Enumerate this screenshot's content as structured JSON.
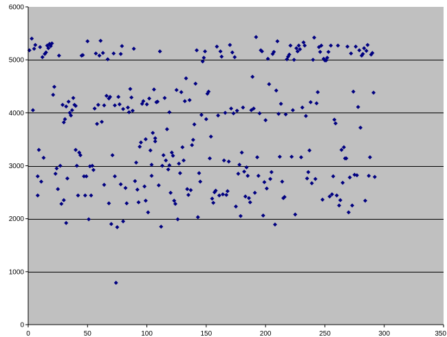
{
  "chart_data": {
    "type": "scatter",
    "title": "",
    "xlabel": "",
    "ylabel": "",
    "xlim": [
      0,
      350
    ],
    "ylim": [
      0,
      6000
    ],
    "xticks": [
      0,
      50,
      100,
      150,
      200,
      250,
      300,
      350
    ],
    "yticks": [
      0,
      1000,
      2000,
      3000,
      4000,
      5000,
      6000
    ],
    "grid": "horizontal",
    "legend": "none",
    "colors": {
      "plot_background": "#c0c0c0",
      "marker": "#000080",
      "gridline": "#000000"
    },
    "series": [
      {
        "marker": "diamond",
        "points": [
          [
            1,
            5180
          ],
          [
            3,
            5400
          ],
          [
            4,
            4050
          ],
          [
            5,
            5210
          ],
          [
            6,
            5280
          ],
          [
            8,
            2440
          ],
          [
            8,
            2800
          ],
          [
            9,
            3300
          ],
          [
            10,
            5240
          ],
          [
            11,
            2700
          ],
          [
            12,
            5050
          ],
          [
            13,
            3150
          ],
          [
            14,
            5110
          ],
          [
            15,
            5140
          ],
          [
            16,
            5270
          ],
          [
            17,
            5220
          ],
          [
            18,
            5300
          ],
          [
            19,
            5260
          ],
          [
            20,
            5310
          ],
          [
            21,
            4340
          ],
          [
            22,
            4490
          ],
          [
            23,
            2850
          ],
          [
            24,
            2950
          ],
          [
            25,
            2560
          ],
          [
            26,
            5080
          ],
          [
            27,
            3000
          ],
          [
            28,
            2280
          ],
          [
            29,
            4150
          ],
          [
            30,
            2350
          ],
          [
            30,
            3820
          ],
          [
            31,
            3880
          ],
          [
            32,
            4120
          ],
          [
            32,
            1920
          ],
          [
            33,
            2760
          ],
          [
            34,
            4210
          ],
          [
            35,
            4000
          ],
          [
            36,
            3950
          ],
          [
            37,
            4050
          ],
          [
            38,
            4280
          ],
          [
            39,
            4150
          ],
          [
            40,
            3300
          ],
          [
            40,
            4130
          ],
          [
            41,
            3000
          ],
          [
            42,
            2440
          ],
          [
            43,
            3250
          ],
          [
            44,
            3200
          ],
          [
            45,
            5080
          ],
          [
            46,
            5090
          ],
          [
            47,
            2800
          ],
          [
            48,
            2440
          ],
          [
            49,
            2800
          ],
          [
            50,
            5350
          ],
          [
            51,
            1990
          ],
          [
            52,
            2990
          ],
          [
            53,
            2440
          ],
          [
            54,
            3000
          ],
          [
            55,
            2920
          ],
          [
            56,
            4080
          ],
          [
            57,
            5120
          ],
          [
            58,
            3790
          ],
          [
            59,
            4150
          ],
          [
            60,
            5080
          ],
          [
            61,
            5360
          ],
          [
            62,
            3830
          ],
          [
            63,
            5130
          ],
          [
            64,
            4140
          ],
          [
            64,
            2640
          ],
          [
            66,
            4320
          ],
          [
            67,
            5010
          ],
          [
            68,
            4270
          ],
          [
            68,
            2290
          ],
          [
            69,
            4300
          ],
          [
            70,
            1900
          ],
          [
            71,
            3200
          ],
          [
            72,
            5120
          ],
          [
            73,
            4140
          ],
          [
            73,
            2800
          ],
          [
            74,
            790
          ],
          [
            75,
            1840
          ],
          [
            76,
            4300
          ],
          [
            77,
            4160
          ],
          [
            78,
            2650
          ],
          [
            78,
            5110
          ],
          [
            79,
            5260
          ],
          [
            80,
            4070
          ],
          [
            80,
            1950
          ],
          [
            82,
            2580
          ],
          [
            83,
            2290
          ],
          [
            84,
            4100
          ],
          [
            85,
            4010
          ],
          [
            86,
            4450
          ],
          [
            87,
            4290
          ],
          [
            88,
            4040
          ],
          [
            89,
            5210
          ],
          [
            90,
            2710
          ],
          [
            91,
            3060
          ],
          [
            92,
            2550
          ],
          [
            93,
            2310
          ],
          [
            94,
            3360
          ],
          [
            95,
            3440
          ],
          [
            96,
            4170
          ],
          [
            97,
            4220
          ],
          [
            98,
            2610
          ],
          [
            99,
            3500
          ],
          [
            99,
            2340
          ],
          [
            100,
            4160
          ],
          [
            101,
            2120
          ],
          [
            102,
            4270
          ],
          [
            103,
            3290
          ],
          [
            104,
            2810
          ],
          [
            104,
            3020
          ],
          [
            105,
            3620
          ],
          [
            106,
            4440
          ],
          [
            107,
            3520
          ],
          [
            107,
            3460
          ],
          [
            108,
            4200
          ],
          [
            109,
            4210
          ],
          [
            110,
            2630
          ],
          [
            111,
            5160
          ],
          [
            112,
            1850
          ],
          [
            113,
            3000
          ],
          [
            114,
            3200
          ],
          [
            115,
            4280
          ],
          [
            116,
            3100
          ],
          [
            117,
            3690
          ],
          [
            118,
            2930
          ],
          [
            119,
            3010
          ],
          [
            119,
            4010
          ],
          [
            120,
            2490
          ],
          [
            121,
            3250
          ],
          [
            122,
            3190
          ],
          [
            123,
            2340
          ],
          [
            124,
            2280
          ],
          [
            125,
            4430
          ],
          [
            126,
            1990
          ],
          [
            127,
            3040
          ],
          [
            128,
            2860
          ],
          [
            129,
            4390
          ],
          [
            130,
            3350
          ],
          [
            131,
            3100
          ],
          [
            132,
            4220
          ],
          [
            133,
            4650
          ],
          [
            134,
            2560
          ],
          [
            135,
            2450
          ],
          [
            136,
            4240
          ],
          [
            137,
            2540
          ],
          [
            138,
            3390
          ],
          [
            139,
            3490
          ],
          [
            140,
            3780
          ],
          [
            141,
            4550
          ],
          [
            142,
            5180
          ],
          [
            143,
            2030
          ],
          [
            144,
            2860
          ],
          [
            145,
            2700
          ],
          [
            146,
            3960
          ],
          [
            147,
            4970
          ],
          [
            148,
            5040
          ],
          [
            149,
            5160
          ],
          [
            150,
            3880
          ],
          [
            151,
            4360
          ],
          [
            152,
            4400
          ],
          [
            153,
            3140
          ],
          [
            154,
            3550
          ],
          [
            155,
            2380
          ],
          [
            156,
            2300
          ],
          [
            157,
            2500
          ],
          [
            158,
            2530
          ],
          [
            159,
            5250
          ],
          [
            160,
            3950
          ],
          [
            161,
            2440
          ],
          [
            162,
            5160
          ],
          [
            163,
            5060
          ],
          [
            164,
            2460
          ],
          [
            165,
            3100
          ],
          [
            166,
            4000
          ],
          [
            167,
            2450
          ],
          [
            168,
            2520
          ],
          [
            169,
            3080
          ],
          [
            170,
            5280
          ],
          [
            171,
            4080
          ],
          [
            172,
            5140
          ],
          [
            173,
            3990
          ],
          [
            174,
            5050
          ],
          [
            175,
            2230
          ],
          [
            176,
            4040
          ],
          [
            177,
            2850
          ],
          [
            178,
            3020
          ],
          [
            179,
            2050
          ],
          [
            180,
            3250
          ],
          [
            181,
            4100
          ],
          [
            182,
            2890
          ],
          [
            183,
            2420
          ],
          [
            184,
            2970
          ],
          [
            185,
            2810
          ],
          [
            186,
            2390
          ],
          [
            187,
            2310
          ],
          [
            188,
            4050
          ],
          [
            189,
            4680
          ],
          [
            190,
            4080
          ],
          [
            191,
            2490
          ],
          [
            192,
            5430
          ],
          [
            193,
            3160
          ],
          [
            194,
            2810
          ],
          [
            195,
            3990
          ],
          [
            196,
            5180
          ],
          [
            197,
            5160
          ],
          [
            198,
            2060
          ],
          [
            199,
            2690
          ],
          [
            200,
            3860
          ],
          [
            201,
            2570
          ],
          [
            202,
            5020
          ],
          [
            203,
            4540
          ],
          [
            204,
            2750
          ],
          [
            205,
            2880
          ],
          [
            206,
            5110
          ],
          [
            207,
            5150
          ],
          [
            208,
            1890
          ],
          [
            209,
            4420
          ],
          [
            210,
            5350
          ],
          [
            211,
            3980
          ],
          [
            212,
            3170
          ],
          [
            213,
            4170
          ],
          [
            214,
            2700
          ],
          [
            215,
            2390
          ],
          [
            216,
            2410
          ],
          [
            217,
            3970
          ],
          [
            218,
            5010
          ],
          [
            219,
            5060
          ],
          [
            220,
            5100
          ],
          [
            221,
            5270
          ],
          [
            222,
            3170
          ],
          [
            223,
            4050
          ],
          [
            224,
            5000
          ],
          [
            225,
            2080
          ],
          [
            226,
            5220
          ],
          [
            227,
            5160
          ],
          [
            228,
            5270
          ],
          [
            229,
            5200
          ],
          [
            230,
            3160
          ],
          [
            231,
            4100
          ],
          [
            232,
            5330
          ],
          [
            233,
            5270
          ],
          [
            234,
            3940
          ],
          [
            235,
            2760
          ],
          [
            236,
            2880
          ],
          [
            237,
            3290
          ],
          [
            238,
            4200
          ],
          [
            239,
            2670
          ],
          [
            240,
            5000
          ],
          [
            241,
            5420
          ],
          [
            242,
            2750
          ],
          [
            243,
            4180
          ],
          [
            244,
            4390
          ],
          [
            245,
            5240
          ],
          [
            246,
            5150
          ],
          [
            247,
            5270
          ],
          [
            248,
            2360
          ],
          [
            249,
            5020
          ],
          [
            250,
            4990
          ],
          [
            251,
            4990
          ],
          [
            252,
            5040
          ],
          [
            253,
            5150
          ],
          [
            254,
            2420
          ],
          [
            255,
            5270
          ],
          [
            256,
            2460
          ],
          [
            257,
            2800
          ],
          [
            258,
            3870
          ],
          [
            259,
            3800
          ],
          [
            260,
            2440
          ],
          [
            261,
            5270
          ],
          [
            262,
            2250
          ],
          [
            263,
            2350
          ],
          [
            264,
            3300
          ],
          [
            265,
            2680
          ],
          [
            266,
            3350
          ],
          [
            267,
            3140
          ],
          [
            268,
            3140
          ],
          [
            269,
            5250
          ],
          [
            270,
            2120
          ],
          [
            271,
            2780
          ],
          [
            272,
            5120
          ],
          [
            273,
            2250
          ],
          [
            274,
            4400
          ],
          [
            275,
            2830
          ],
          [
            276,
            5250
          ],
          [
            277,
            2820
          ],
          [
            278,
            4110
          ],
          [
            279,
            5180
          ],
          [
            280,
            3720
          ],
          [
            281,
            5080
          ],
          [
            282,
            5110
          ],
          [
            283,
            5220
          ],
          [
            284,
            2340
          ],
          [
            285,
            5170
          ],
          [
            286,
            5280
          ],
          [
            287,
            2810
          ],
          [
            288,
            3160
          ],
          [
            289,
            5100
          ],
          [
            290,
            5130
          ],
          [
            291,
            4380
          ],
          [
            292,
            2790
          ]
        ]
      }
    ]
  }
}
